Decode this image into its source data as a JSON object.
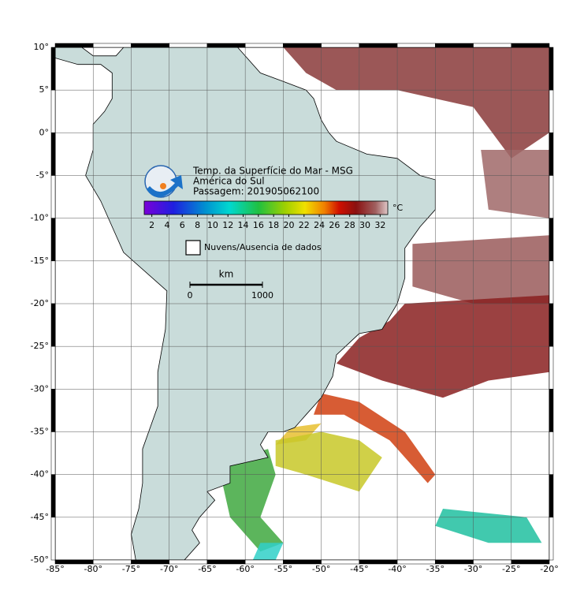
{
  "map": {
    "title": "Temp. da Superfície do Mar - MSG",
    "region": "América do Sul",
    "pass": "Passagem: 201905062100",
    "lon_range": [
      -85,
      -20
    ],
    "lat_range": [
      -50,
      10
    ],
    "lon_ticks": [
      {
        "value": -85,
        "label": "-85°"
      },
      {
        "value": -80,
        "label": "-80°"
      },
      {
        "value": -75,
        "label": "-75°"
      },
      {
        "value": -70,
        "label": "-70°"
      },
      {
        "value": -65,
        "label": "-65°"
      },
      {
        "value": -60,
        "label": "-60°"
      },
      {
        "value": -55,
        "label": "-55°"
      },
      {
        "value": -50,
        "label": "-50°"
      },
      {
        "value": -45,
        "label": "-45°"
      },
      {
        "value": -40,
        "label": "-40°"
      },
      {
        "value": -35,
        "label": "-35°"
      },
      {
        "value": -30,
        "label": "-30°"
      },
      {
        "value": -25,
        "label": "-25°"
      },
      {
        "value": -20,
        "label": "-20°"
      }
    ],
    "lat_ticks": [
      {
        "value": 10,
        "label": "10°"
      },
      {
        "value": 5,
        "label": "5°"
      },
      {
        "value": 0,
        "label": "0°"
      },
      {
        "value": -5,
        "label": "-5°"
      },
      {
        "value": -10,
        "label": "-10°"
      },
      {
        "value": -15,
        "label": "-15°"
      },
      {
        "value": -20,
        "label": "-20°"
      },
      {
        "value": -25,
        "label": "-25°"
      },
      {
        "value": -30,
        "label": "-30°"
      },
      {
        "value": -35,
        "label": "-35°"
      },
      {
        "value": -40,
        "label": "-40°"
      },
      {
        "value": -45,
        "label": "-45°"
      },
      {
        "value": -50,
        "label": "-50°"
      }
    ],
    "colorbar": {
      "unit": "°C",
      "range": [
        1,
        33
      ],
      "ticks": [
        2,
        4,
        6,
        8,
        10,
        12,
        14,
        16,
        18,
        20,
        22,
        24,
        26,
        28,
        30,
        32
      ]
    },
    "legend": "Nuvens/Ausencia de dados",
    "scale_bar": {
      "unit": "km",
      "ticks": [
        0,
        1000
      ]
    }
  }
}
